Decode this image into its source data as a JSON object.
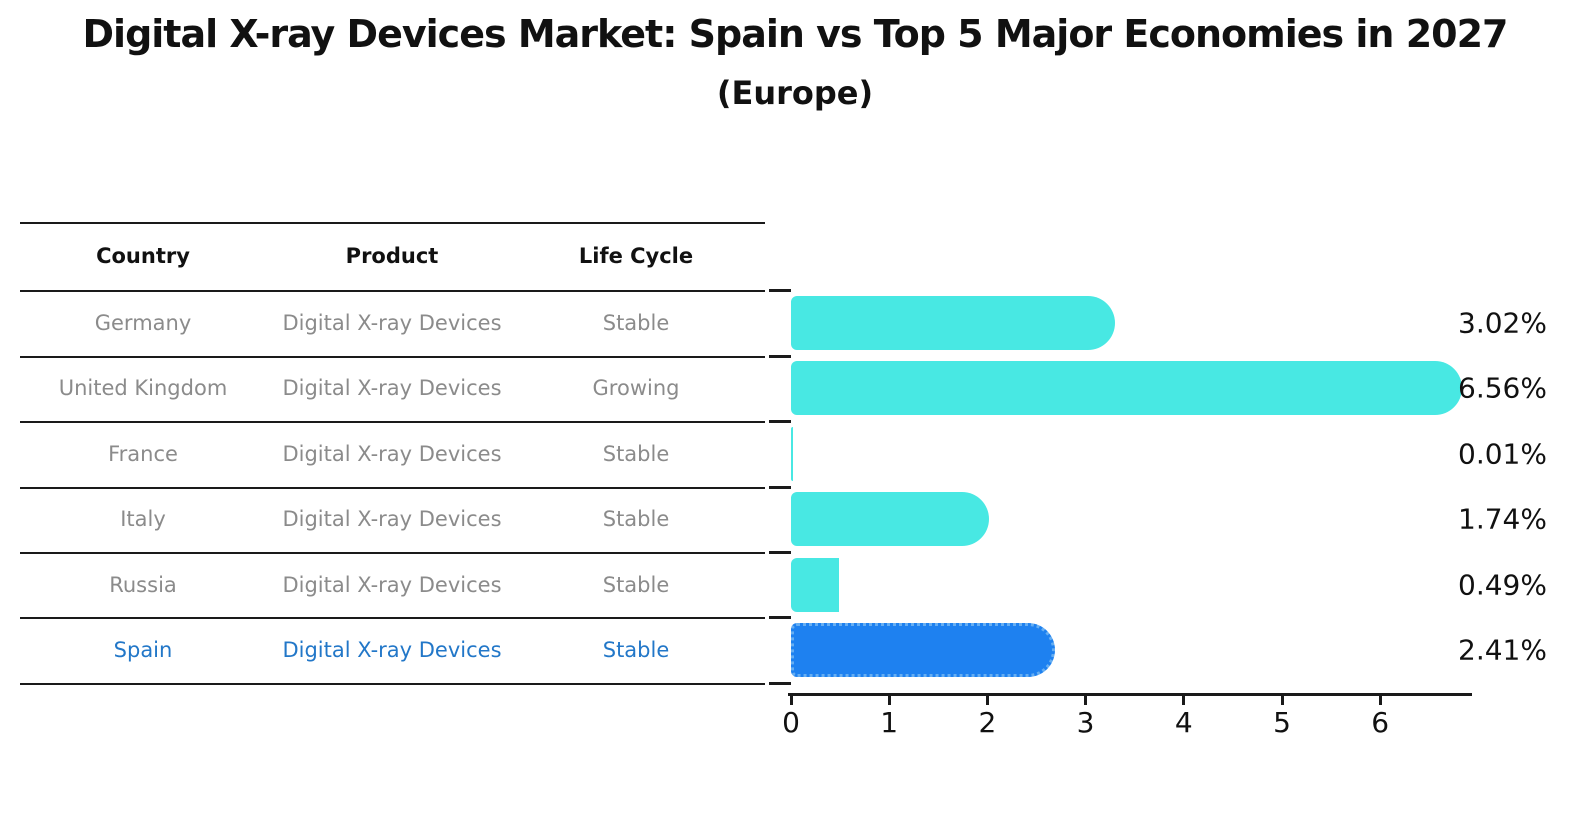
{
  "title": "Digital X-ray Devices Market: Spain vs Top 5 Major Economies in 2027",
  "subtitle": "(Europe)",
  "table": {
    "columns": [
      "Country",
      "Product",
      "Life Cycle"
    ],
    "rows": [
      {
        "country": "Germany",
        "product": "Digital X-ray Devices",
        "life_cycle": "Stable",
        "highlighted": false
      },
      {
        "country": "United Kingdom",
        "product": "Digital X-ray Devices",
        "life_cycle": "Growing",
        "highlighted": false
      },
      {
        "country": "France",
        "product": "Digital X-ray Devices",
        "life_cycle": "Stable",
        "highlighted": false
      },
      {
        "country": "Italy",
        "product": "Digital X-ray Devices",
        "life_cycle": "Stable",
        "highlighted": false
      },
      {
        "country": "Russia",
        "product": "Digital X-ray Devices",
        "life_cycle": "Stable",
        "highlighted": false
      },
      {
        "country": "Spain",
        "product": "Digital X-ray Devices",
        "life_cycle": "Stable",
        "highlighted": true
      }
    ]
  },
  "chart_data": {
    "type": "bar",
    "orientation": "horizontal",
    "title": "Digital X-ray Devices Market: Spain vs Top 5 Major Economies in 2027 (Europe)",
    "categories": [
      "Germany",
      "United Kingdom",
      "France",
      "Italy",
      "Russia",
      "Spain"
    ],
    "values": [
      3.02,
      6.56,
      0.01,
      1.74,
      0.49,
      2.41
    ],
    "bar_labels": [
      "3.02%",
      "6.56%",
      "0.01%",
      "1.74%",
      "0.49%",
      "2.41%"
    ],
    "xticks": [
      0,
      1,
      2,
      3,
      4,
      5,
      6
    ],
    "xlim": [
      0,
      6.93
    ],
    "grid": false,
    "legend": false,
    "highlight_index": 5
  },
  "colors": {
    "bar": "#48e8e3",
    "highlight_bar": "#1e81f0",
    "highlight_border": "#66aef2",
    "highlight_text": "#2277c8",
    "table_text": "#8b8b8b",
    "heading_text": "#111111",
    "line": "#1a1a1a"
  }
}
